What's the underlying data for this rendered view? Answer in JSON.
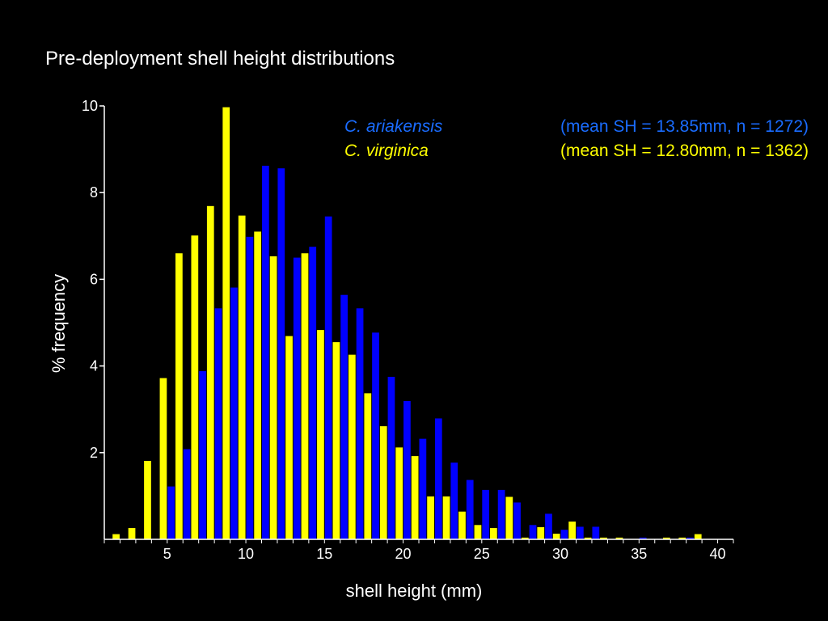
{
  "chart_data": {
    "type": "bar",
    "title": "Pre-deployment shell height distributions",
    "xlabel": "shell height (mm)",
    "ylabel": "% frequency",
    "xlim": [
      1,
      41
    ],
    "ylim": [
      0,
      10
    ],
    "x_ticks": [
      5,
      10,
      15,
      20,
      25,
      30,
      35,
      40
    ],
    "y_ticks": [
      2,
      4,
      6,
      8,
      10
    ],
    "bin_start": 1,
    "bin_width": 1,
    "grid": false,
    "legend_position": "top-right",
    "series": [
      {
        "name": "C. ariakensis",
        "stats": "(mean SH = 13.85mm, n = 1272)",
        "color": "#0000ff",
        "label_color": "#1a6cff",
        "values": [
          0,
          0,
          0,
          0,
          1.22,
          2.08,
          3.88,
          5.33,
          5.81,
          6.98,
          8.62,
          8.56,
          6.5,
          6.75,
          7.45,
          5.64,
          5.33,
          4.77,
          3.75,
          3.19,
          2.32,
          2.79,
          1.77,
          1.37,
          1.14,
          1.14,
          0.85,
          0.33,
          0.59,
          0.22,
          0.29,
          0.29,
          0,
          0,
          0.04,
          0,
          0,
          0.04,
          0,
          0
        ]
      },
      {
        "name": "C. virginica",
        "stats": "(mean SH = 12.80mm, n = 1362)",
        "color": "#ffff00",
        "label_color": "#ffff00",
        "values": [
          0.12,
          0.26,
          1.81,
          3.72,
          6.6,
          7.01,
          7.69,
          9.97,
          7.47,
          7.1,
          6.53,
          4.69,
          6.6,
          4.83,
          4.55,
          4.26,
          3.37,
          2.61,
          2.12,
          1.92,
          0.99,
          0.99,
          0.64,
          0.33,
          0.26,
          0.98,
          0.04,
          0.28,
          0.13,
          0.41,
          0.04,
          0.04,
          0.04,
          0,
          0,
          0.04,
          0.04,
          0.12,
          0,
          0
        ]
      }
    ]
  }
}
